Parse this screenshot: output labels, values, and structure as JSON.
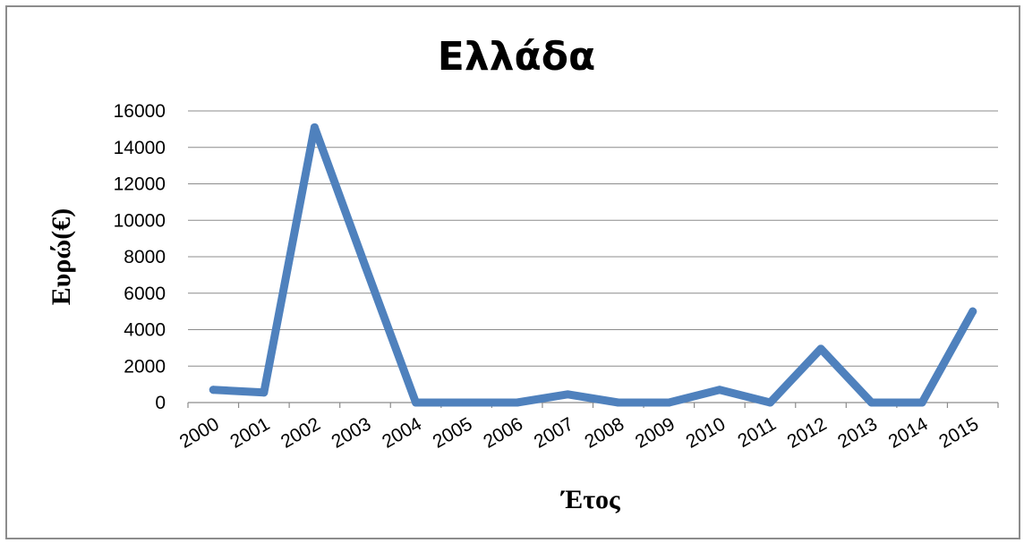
{
  "chart_data": {
    "type": "line",
    "title": "Ελλάδα",
    "xlabel": "Έτος",
    "ylabel": "Ευρώ(€)",
    "categories": [
      "2000",
      "2001",
      "2002",
      "2003",
      "2004",
      "2005",
      "2006",
      "2007",
      "2008",
      "2009",
      "2010",
      "2011",
      "2012",
      "2013",
      "2014",
      "2015"
    ],
    "series": [
      {
        "values": [
          700,
          550,
          15100,
          7500,
          0,
          0,
          0,
          450,
          0,
          0,
          700,
          0,
          2950,
          0,
          0,
          5000
        ]
      }
    ],
    "ylim": [
      0,
      16000
    ],
    "yticks": [
      0,
      2000,
      4000,
      6000,
      8000,
      10000,
      12000,
      14000,
      16000
    ],
    "grid": true,
    "legend": "none",
    "line_color": "#4f81bd"
  }
}
